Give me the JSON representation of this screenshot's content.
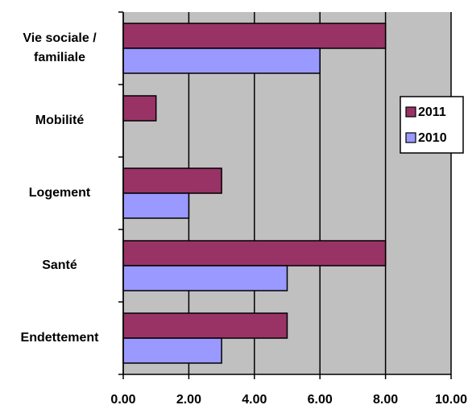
{
  "chart_data": {
    "type": "hbar",
    "categories": [
      "Vie sociale / familiale",
      "Mobilité",
      "Logement",
      "Santé",
      "Endettement"
    ],
    "series": [
      {
        "name": "2011",
        "color": "#993366",
        "values": [
          8,
          1,
          3,
          8,
          5
        ]
      },
      {
        "name": "2010",
        "color": "#9999ff",
        "values": [
          6,
          0,
          2,
          5,
          3
        ]
      }
    ],
    "xlim": [
      0,
      10
    ],
    "xticks": [
      {
        "value": 0,
        "label": "0.00"
      },
      {
        "value": 2,
        "label": "2.00"
      },
      {
        "value": 4,
        "label": "4.00"
      },
      {
        "value": 6,
        "label": "6.00"
      },
      {
        "value": 8,
        "label": "8.00"
      },
      {
        "value": 10,
        "label": "10.00"
      }
    ],
    "grid": true,
    "legend": "right"
  }
}
